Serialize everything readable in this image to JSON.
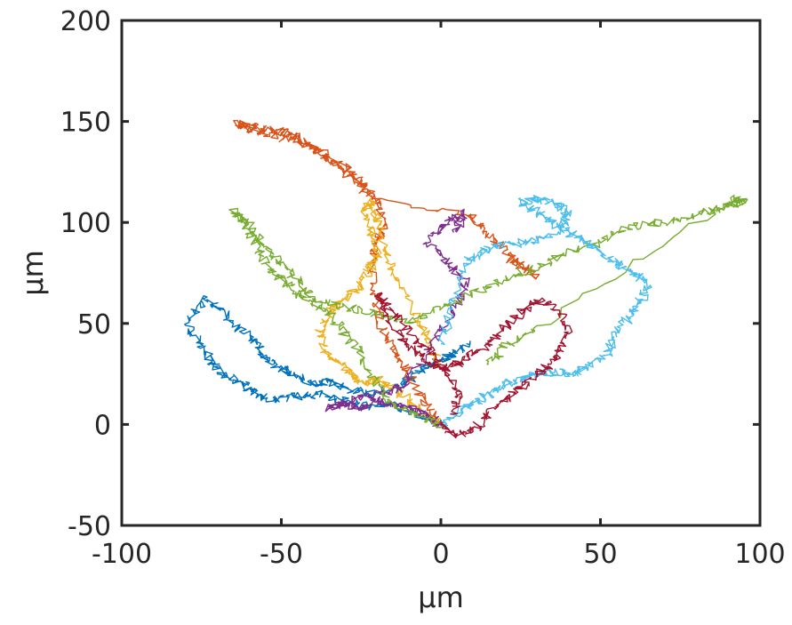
{
  "chart_data": {
    "type": "line",
    "title": "",
    "xlabel": "μm",
    "ylabel": "μm",
    "xlim": [
      -100,
      100
    ],
    "ylim": [
      -50,
      200
    ],
    "x_ticks": [
      "-100",
      "-50",
      "0",
      "50",
      "100"
    ],
    "y_ticks": [
      "-50",
      "0",
      "50",
      "100",
      "150",
      "200"
    ],
    "grid": false,
    "legend": "none",
    "colors": [
      "#0072BD",
      "#D95319",
      "#EDB120",
      "#7E2F8E",
      "#77AC30",
      "#4DBEEE",
      "#A2142F"
    ],
    "series": [
      {
        "color": "#0072BD",
        "x": [
          0,
          -8,
          -15,
          -22,
          -30,
          -38,
          -45,
          -52,
          -58,
          -62,
          -68,
          -72,
          -76,
          -80,
          -74,
          -70,
          -64,
          -58,
          -55,
          -50,
          -46,
          -40,
          -35,
          -30,
          -22,
          -15,
          -10,
          -5,
          0,
          5,
          8
        ],
        "y": [
          0,
          5,
          10,
          8,
          12,
          15,
          14,
          12,
          15,
          20,
          25,
          32,
          40,
          52,
          62,
          58,
          48,
          40,
          32,
          28,
          25,
          20,
          22,
          18,
          15,
          18,
          22,
          28,
          32,
          35,
          40
        ]
      },
      {
        "color": "#D95319",
        "x": [
          0,
          -5,
          -10,
          -14,
          -18,
          -20,
          -22,
          -20,
          -18,
          -20,
          -25,
          -30,
          -35,
          -40,
          -45,
          -50,
          -55,
          -60,
          -64,
          -58,
          -50,
          -42,
          -36,
          -30,
          -26,
          -22,
          8,
          12,
          18,
          22,
          26,
          30
        ],
        "y": [
          0,
          10,
          25,
          35,
          45,
          60,
          80,
          90,
          100,
          110,
          120,
          125,
          132,
          138,
          142,
          145,
          146,
          148,
          149,
          145,
          142,
          138,
          132,
          128,
          120,
          112,
          105,
          98,
          90,
          82,
          78,
          72
        ]
      },
      {
        "color": "#EDB120",
        "x": [
          0,
          -5,
          -10,
          -15,
          -20,
          -25,
          -28,
          -32,
          -36,
          -38,
          -35,
          -32,
          -28,
          -25,
          -22,
          -20,
          -22,
          -24,
          -22,
          -20,
          -18,
          -15,
          -10,
          -5,
          0
        ],
        "y": [
          0,
          5,
          12,
          18,
          22,
          20,
          25,
          30,
          35,
          45,
          55,
          60,
          65,
          70,
          78,
          85,
          95,
          105,
          112,
          102,
          90,
          75,
          60,
          45,
          30
        ]
      },
      {
        "color": "#7E2F8E",
        "x": [
          0,
          -5,
          -10,
          -15,
          -20,
          -25,
          -30,
          -35,
          -28,
          -20,
          -12,
          -5,
          0,
          5,
          8,
          2,
          -4,
          2,
          8,
          4
        ],
        "y": [
          0,
          5,
          8,
          10,
          12,
          8,
          10,
          8,
          12,
          15,
          18,
          35,
          45,
          60,
          70,
          80,
          90,
          100,
          105,
          95
        ]
      },
      {
        "color": "#77AC30",
        "x": [
          0,
          -8,
          -15,
          -20,
          -25,
          -30,
          -35,
          -40,
          -45,
          -50,
          -55,
          -58,
          -62,
          -65,
          -60,
          -55,
          -50,
          -45,
          -40,
          -30,
          -20,
          -10,
          0,
          10,
          20,
          30,
          40,
          50,
          60,
          70,
          80,
          90,
          95,
          92,
          85,
          30,
          20,
          15
        ],
        "y": [
          0,
          5,
          10,
          20,
          35,
          45,
          55,
          60,
          65,
          72,
          80,
          90,
          100,
          106,
          98,
          88,
          80,
          72,
          62,
          58,
          55,
          50,
          58,
          65,
          72,
          78,
          85,
          90,
          98,
          100,
          104,
          108,
          110,
          112,
          105,
          48,
          38,
          30
        ]
      },
      {
        "color": "#4DBEEE",
        "x": [
          0,
          5,
          10,
          15,
          20,
          25,
          30,
          35,
          40,
          45,
          52,
          55,
          60,
          63,
          65,
          60,
          55,
          50,
          45,
          40,
          35,
          30,
          25,
          30,
          35,
          40,
          38,
          32,
          25,
          18,
          12,
          8,
          4,
          0
        ],
        "y": [
          0,
          5,
          10,
          15,
          20,
          22,
          25,
          26,
          25,
          28,
          35,
          45,
          55,
          62,
          70,
          75,
          80,
          86,
          90,
          95,
          100,
          105,
          110,
          112,
          110,
          105,
          98,
          92,
          90,
          88,
          85,
          80,
          60,
          40
        ]
      },
      {
        "color": "#A2142F",
        "x": [
          0,
          5,
          10,
          15,
          20,
          25,
          30,
          35,
          38,
          40,
          36,
          30,
          25,
          20,
          15,
          10,
          5,
          0,
          -5,
          -10,
          -15,
          -20,
          -15,
          -8,
          -2,
          2,
          6,
          4
        ],
        "y": [
          0,
          -5,
          -3,
          5,
          12,
          18,
          25,
          30,
          38,
          48,
          58,
          62,
          55,
          48,
          40,
          35,
          30,
          28,
          32,
          38,
          48,
          65,
          55,
          42,
          35,
          25,
          15,
          5
        ]
      }
    ]
  }
}
